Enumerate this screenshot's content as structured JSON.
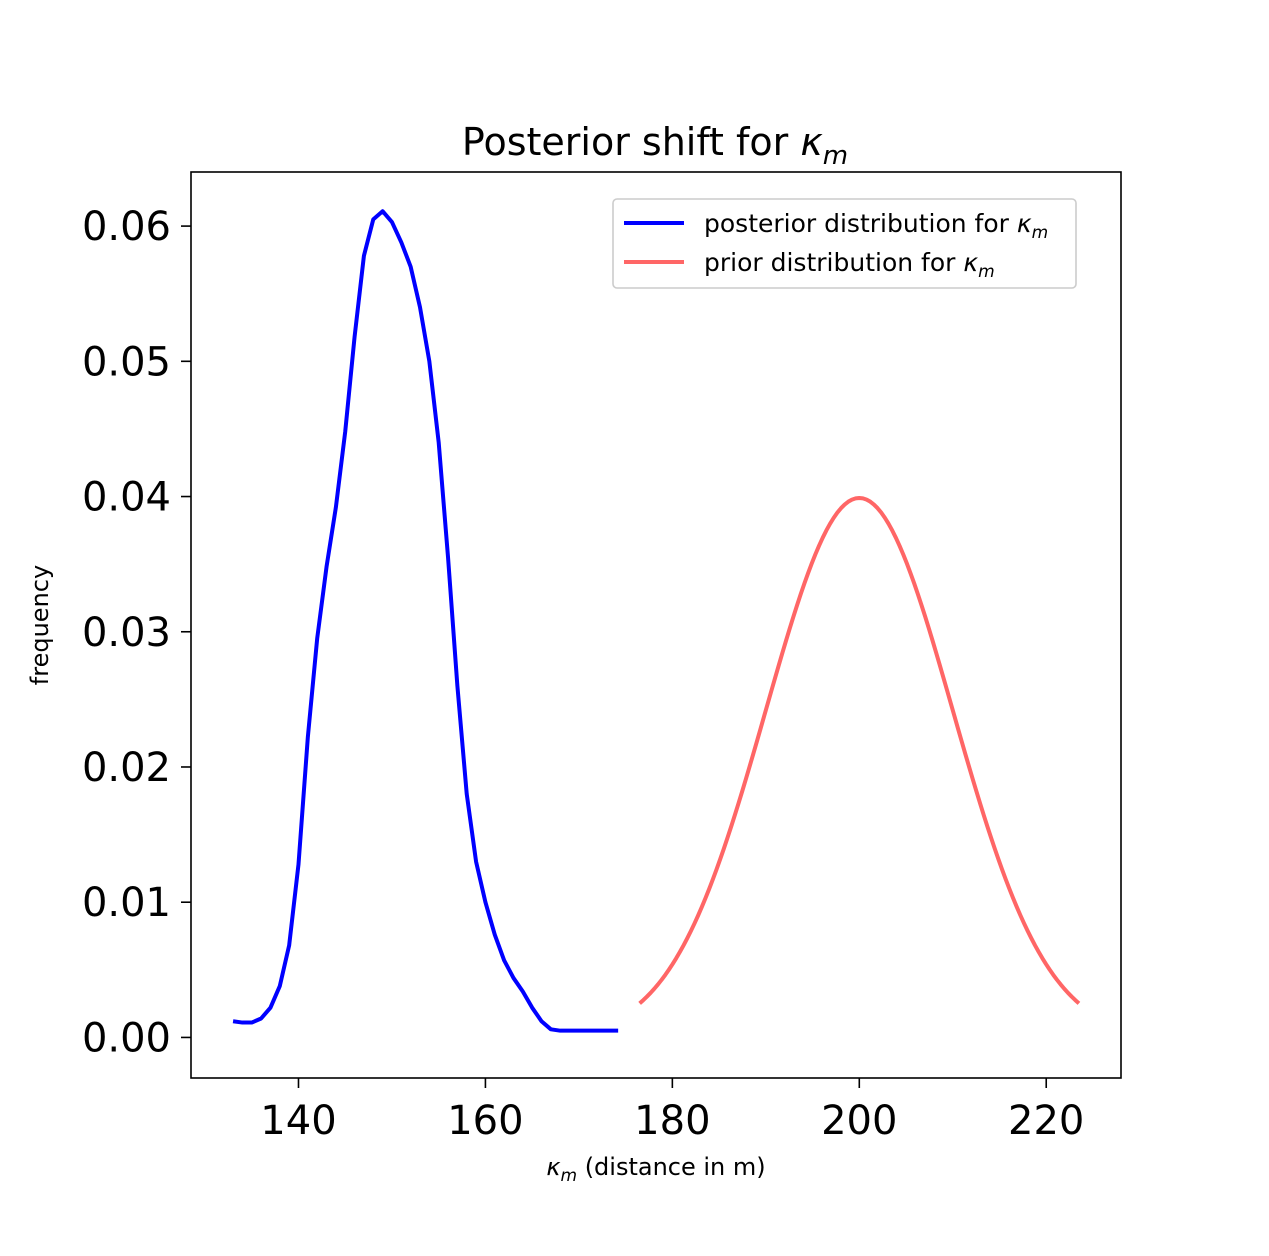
{
  "chart_data": {
    "type": "line",
    "title": "Posterior shift for κm",
    "title_parts": {
      "text": "Posterior shift for ",
      "symbol": "κ",
      "subscript": "m"
    },
    "xlabel": "κm (distance  in m)",
    "xlabel_parts": {
      "symbol": "κ",
      "subscript": "m",
      "text": " (distance  in m)"
    },
    "ylabel": "frequency",
    "xlim": [
      128.5,
      228
    ],
    "ylim": [
      -0.003,
      0.064
    ],
    "xticks": [
      140,
      160,
      180,
      200,
      220
    ],
    "xtick_labels": [
      "140",
      "160",
      "180",
      "200",
      "220"
    ],
    "yticks": [
      0.0,
      0.01,
      0.02,
      0.03,
      0.04,
      0.05,
      0.06
    ],
    "ytick_labels": [
      "0.00",
      "0.01",
      "0.02",
      "0.03",
      "0.04",
      "0.05",
      "0.06"
    ],
    "grid": false,
    "legend_position": "top-right",
    "series": [
      {
        "name": "posterior distribution for κm",
        "label_parts": {
          "text": "posterior distribution for ",
          "symbol": "κ",
          "subscript": "m"
        },
        "color": "#0000ff",
        "x": [
          133,
          134,
          135,
          136,
          137,
          138,
          139,
          140,
          141,
          142,
          143,
          144,
          145,
          146,
          147,
          148,
          149,
          150,
          151,
          152,
          153,
          154,
          155,
          156,
          157,
          158,
          159,
          160,
          161,
          162,
          163,
          164,
          165,
          166,
          167,
          168,
          169,
          170,
          171,
          172,
          173,
          174.2
        ],
        "y": [
          0.0012,
          0.0011,
          0.0011,
          0.0014,
          0.0022,
          0.0038,
          0.0068,
          0.0128,
          0.0222,
          0.0295,
          0.0348,
          0.0392,
          0.0448,
          0.0518,
          0.0578,
          0.0605,
          0.0611,
          0.0603,
          0.0588,
          0.057,
          0.054,
          0.05,
          0.044,
          0.0355,
          0.026,
          0.018,
          0.013,
          0.01,
          0.0076,
          0.0057,
          0.0044,
          0.0034,
          0.0022,
          0.0012,
          0.0006,
          0.0005,
          0.0005,
          0.0005,
          0.0005,
          0.0005,
          0.0005,
          0.0005
        ]
      },
      {
        "name": "prior distribution for κm",
        "label_parts": {
          "text": "prior distribution for ",
          "symbol": "κ",
          "subscript": "m"
        },
        "color": "#ff6666",
        "distribution": "normal",
        "mean": 200,
        "std": 10,
        "x_range": [
          176.5,
          223.5
        ]
      }
    ]
  }
}
